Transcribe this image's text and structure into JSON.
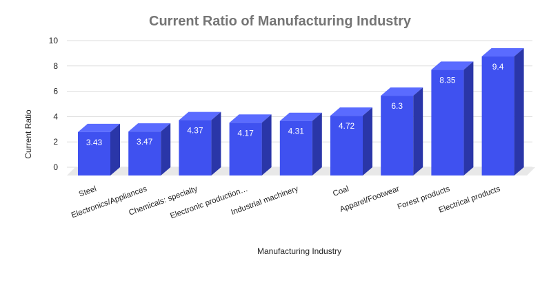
{
  "chart_data": {
    "type": "bar",
    "title": "Current Ratio of Manufacturing Industry",
    "xlabel": "Manufacturing Industry",
    "ylabel": "Current Ratio",
    "ylim": [
      0,
      10
    ],
    "yticks": [
      "0",
      "2",
      "4",
      "6",
      "8",
      "10"
    ],
    "grid": true,
    "style": "3d",
    "colors": {
      "front": "#3f51f0",
      "side": "#2a36a8",
      "top": "#5a6bff",
      "floor": "#e8e8e8"
    },
    "categories": [
      "Steel",
      "Electronics/Appliances",
      "Chemicals: specialty",
      "Electronic production…",
      "Industrial machinery",
      "Coal",
      "Apparel/Footwear",
      "Forest products",
      "Electrical products"
    ],
    "values": [
      3.43,
      3.47,
      4.37,
      4.17,
      4.31,
      4.72,
      6.3,
      8.35,
      9.4
    ],
    "value_labels": [
      "3.43",
      "3.47",
      "4.37",
      "4.17",
      "4.31",
      "4.72",
      "6.3",
      "8.35",
      "9.4"
    ]
  }
}
